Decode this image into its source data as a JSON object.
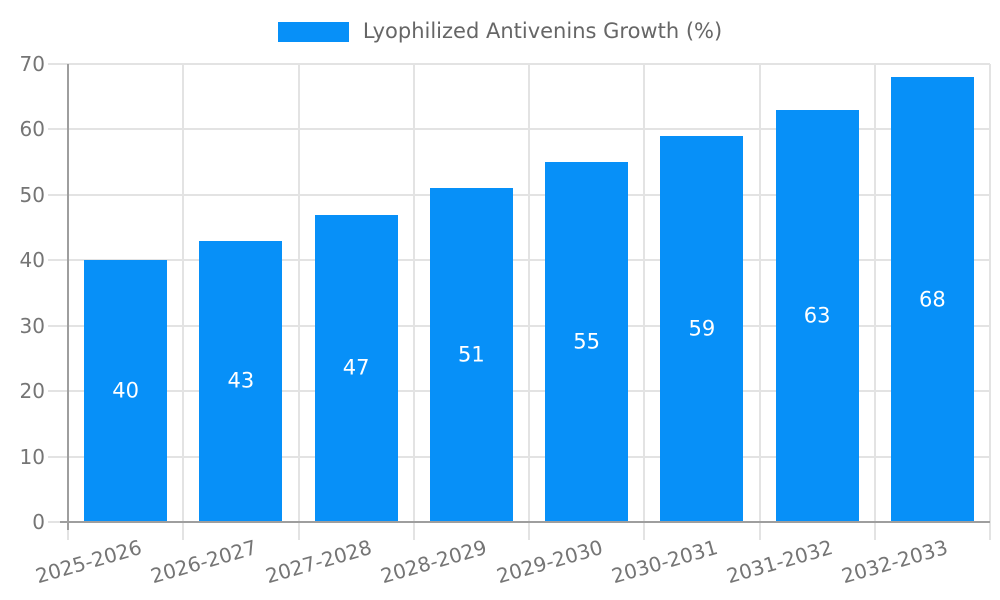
{
  "chart_data": {
    "type": "bar",
    "title": "",
    "legend_label": "Lyophilized Antivenins Growth (%)",
    "legend_position": "top",
    "categories": [
      "2025-2026",
      "2026-2027",
      "2027-2028",
      "2028-2029",
      "2029-2030",
      "2030-2031",
      "2031-2032",
      "2032-2033"
    ],
    "values": [
      40,
      43,
      47,
      51,
      55,
      59,
      63,
      68
    ],
    "xlabel": "",
    "ylabel": "",
    "ylim": [
      0,
      70
    ],
    "ytick_step": 10,
    "ytick_labels": [
      "0",
      "10",
      "20",
      "30",
      "40",
      "50",
      "60",
      "70"
    ],
    "grid": true,
    "data_labels": "inside-center",
    "colors": {
      "bar": "#0790f8",
      "grid": "#e3e3e3",
      "axis": "#9e9e9e",
      "tick_label": "#757575",
      "legend_text": "#666666",
      "bar_label": "#ffffff",
      "background": "#ffffff"
    }
  }
}
